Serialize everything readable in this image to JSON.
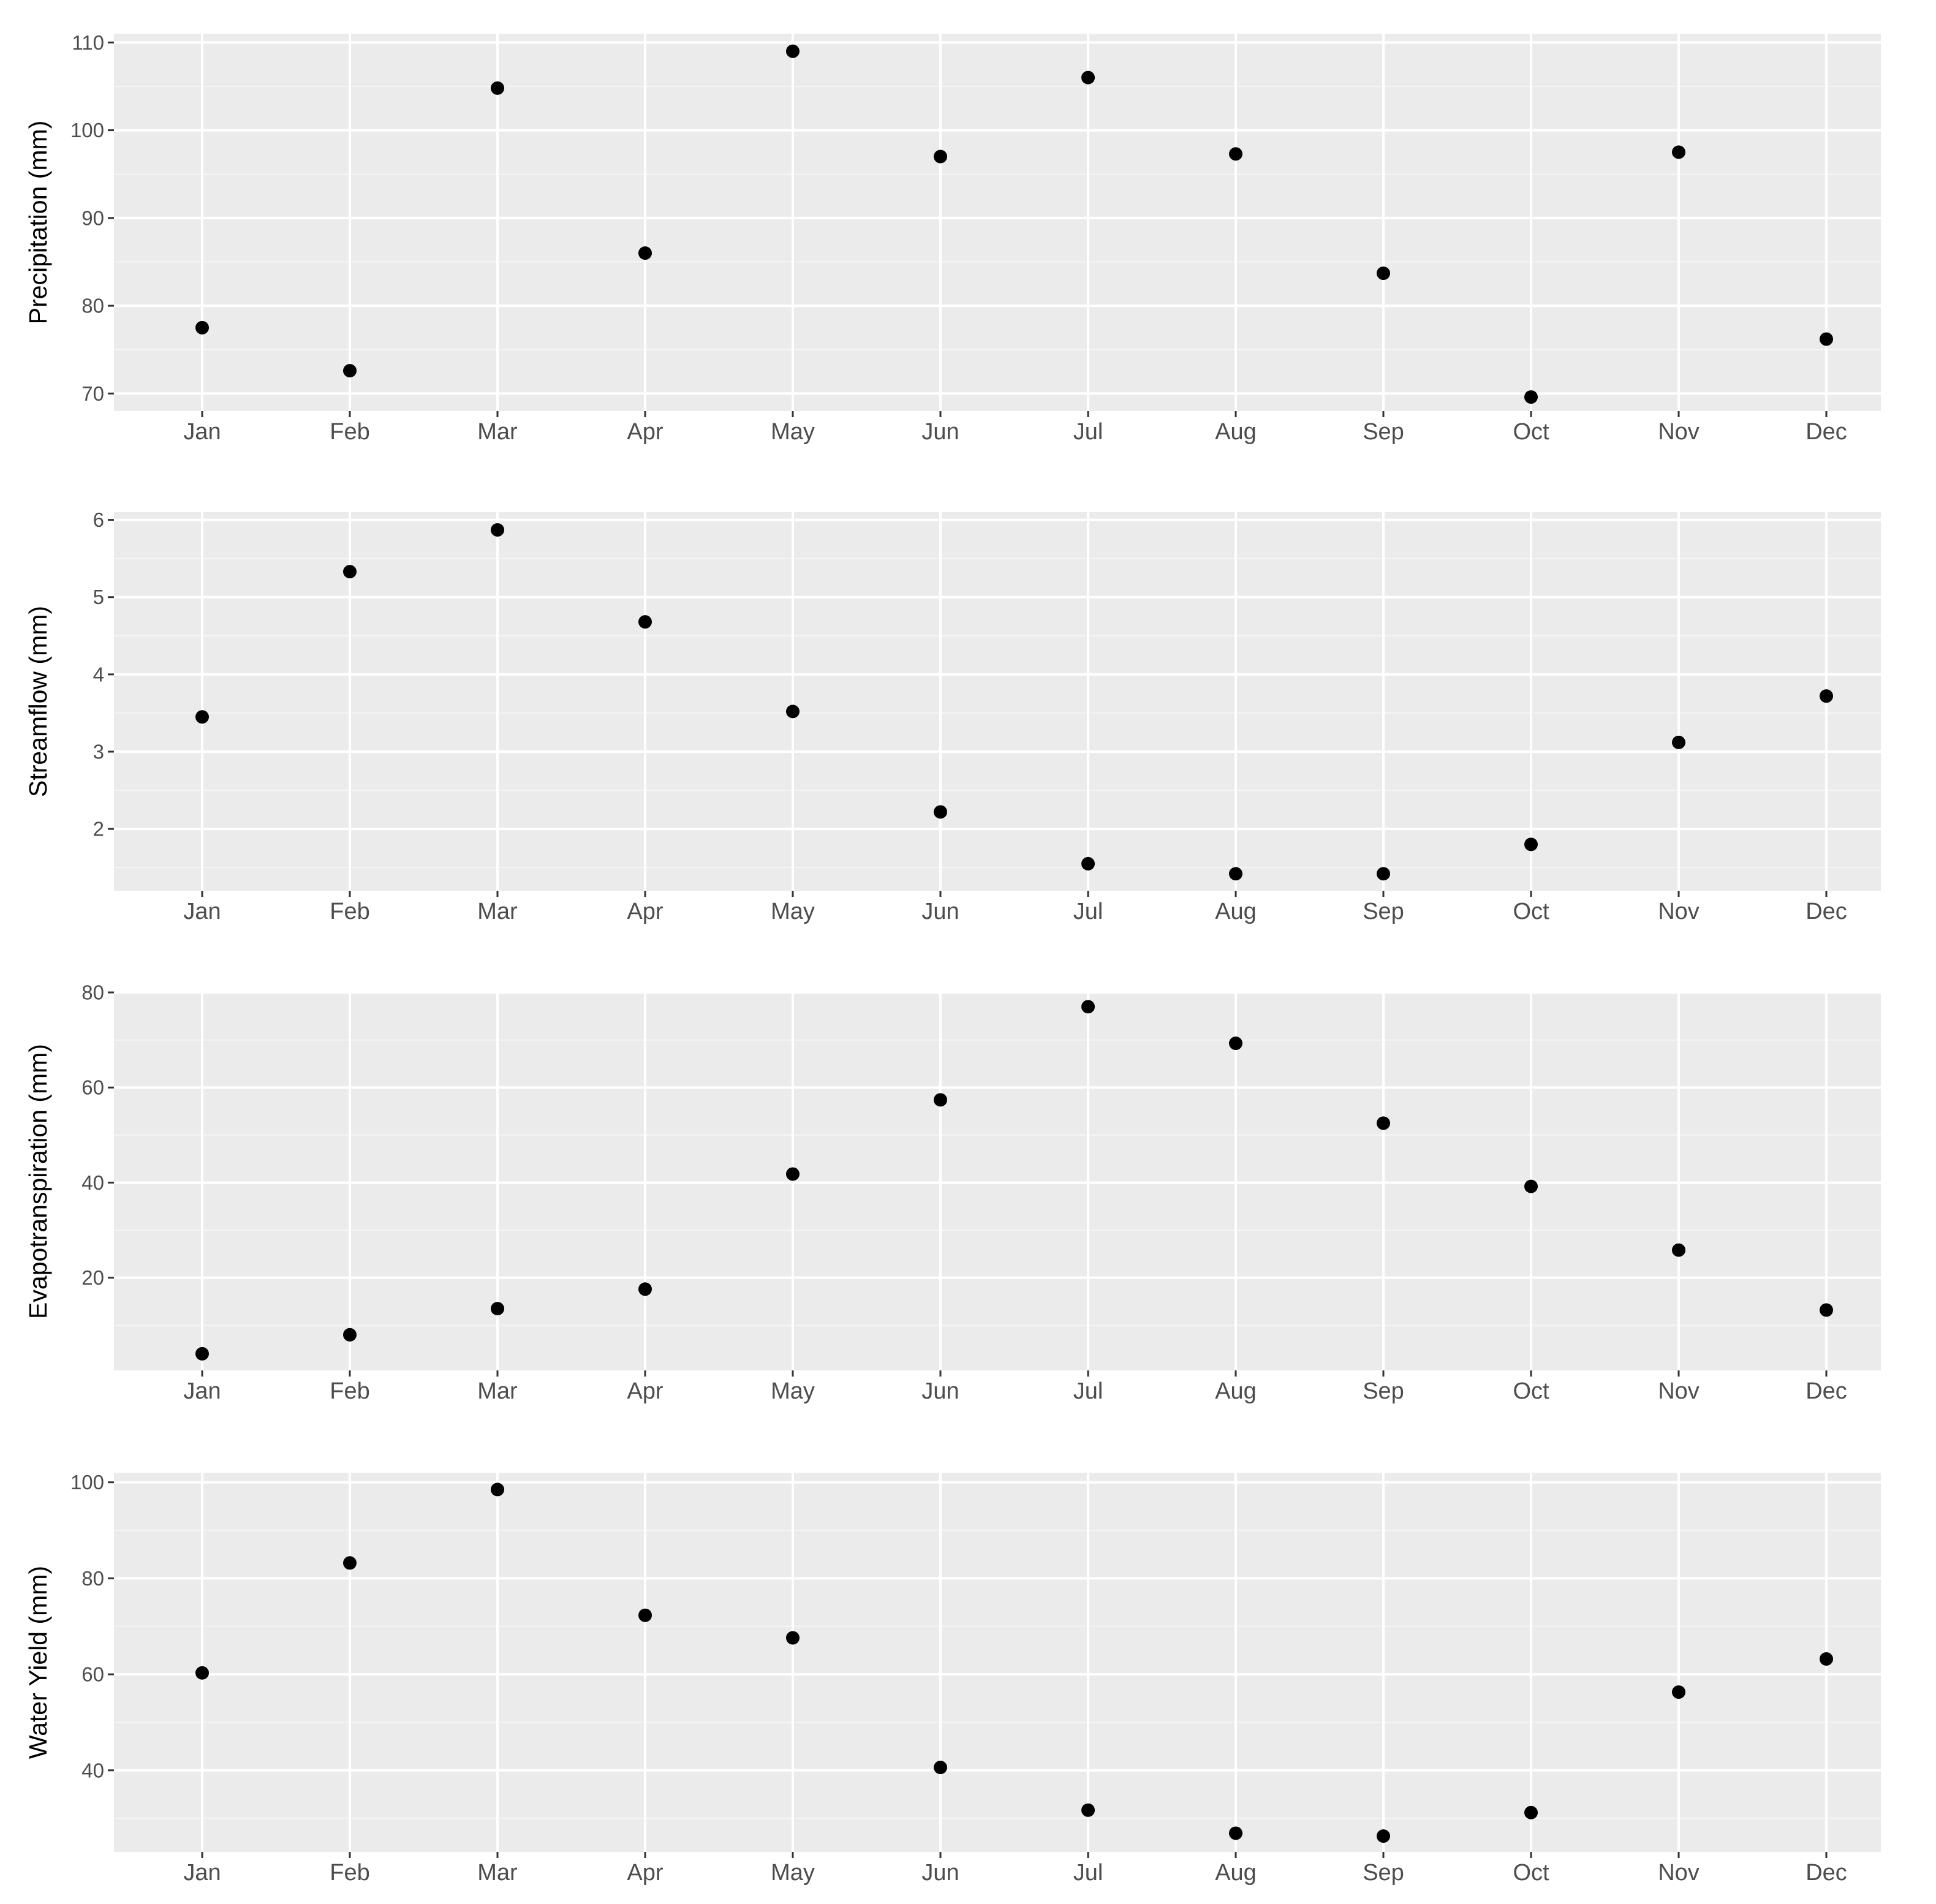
{
  "colors": {
    "panel_background": "#ebebeb",
    "grid_major": "#ffffff",
    "grid_minor": "#f5f5f5",
    "tick_text": "#4d4d4d",
    "tick_mark": "#333333",
    "point": "#000000"
  },
  "chart_data": [
    {
      "type": "scatter",
      "categories": [
        "Jan",
        "Feb",
        "Mar",
        "Apr",
        "May",
        "Jun",
        "Jul",
        "Aug",
        "Sep",
        "Oct",
        "Nov",
        "Dec"
      ],
      "ylabel": "Precipitation (mm)",
      "xlabel": "",
      "ylim": [
        68,
        111
      ],
      "yticks": [
        70,
        80,
        90,
        100,
        110
      ],
      "values": [
        77.5,
        72.6,
        104.8,
        86.0,
        109.0,
        97.0,
        106.0,
        97.3,
        83.7,
        69.6,
        97.5,
        76.2
      ],
      "grid": true
    },
    {
      "type": "scatter",
      "categories": [
        "Jan",
        "Feb",
        "Mar",
        "Apr",
        "May",
        "Jun",
        "Jul",
        "Aug",
        "Sep",
        "Oct",
        "Nov",
        "Dec"
      ],
      "ylabel": "Streamflow (mm)",
      "xlabel": "",
      "ylim": [
        1.2,
        6.1
      ],
      "yticks": [
        2,
        3,
        4,
        5,
        6
      ],
      "values": [
        3.45,
        5.33,
        5.87,
        4.68,
        3.52,
        2.22,
        1.55,
        1.42,
        1.42,
        1.8,
        3.12,
        3.72
      ],
      "grid": true
    },
    {
      "type": "scatter",
      "categories": [
        "Jan",
        "Feb",
        "Mar",
        "Apr",
        "May",
        "Jun",
        "Jul",
        "Aug",
        "Sep",
        "Oct",
        "Nov",
        "Dec"
      ],
      "ylabel": "Evapotranspiration (mm)",
      "xlabel": "",
      "ylim": [
        0.5,
        80
      ],
      "yticks": [
        20,
        40,
        60,
        80
      ],
      "values": [
        4.0,
        8.0,
        13.5,
        17.6,
        41.8,
        57.4,
        77.0,
        69.3,
        52.5,
        39.2,
        25.8,
        13.2
      ],
      "grid": true
    },
    {
      "type": "scatter",
      "categories": [
        "Jan",
        "Feb",
        "Mar",
        "Apr",
        "May",
        "Jun",
        "Jul",
        "Aug",
        "Sep",
        "Oct",
        "Nov",
        "Dec"
      ],
      "ylabel": "Water Yield (mm)",
      "xlabel": "",
      "ylim": [
        23,
        102
      ],
      "yticks": [
        40,
        60,
        80,
        100
      ],
      "values": [
        60.3,
        83.2,
        98.5,
        72.3,
        67.6,
        40.6,
        31.7,
        26.9,
        26.3,
        31.2,
        56.3,
        63.2
      ],
      "grid": true
    }
  ]
}
